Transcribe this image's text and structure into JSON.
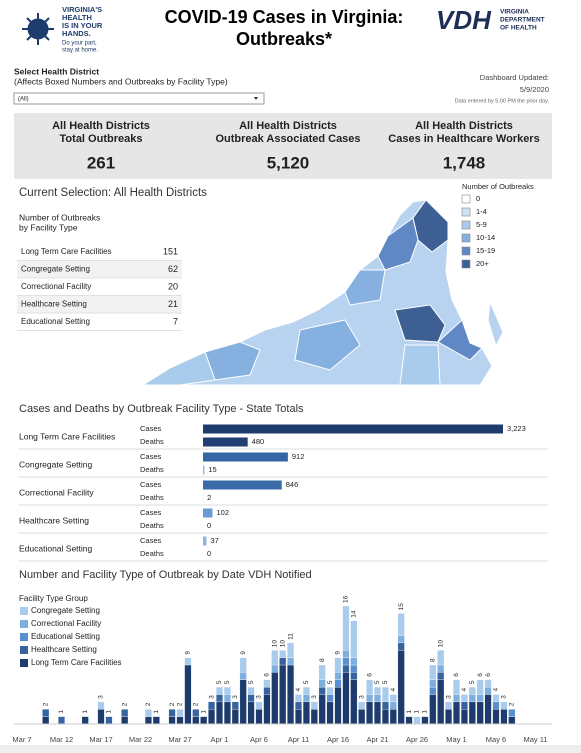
{
  "header": {
    "logo_lines": [
      "VIRGINIA'S",
      "HEALTH",
      "IS IN YOUR",
      "HANDS."
    ],
    "logo_tagline": [
      "Do your part,",
      "stay at home."
    ],
    "title_lines": [
      "COVID-19 Cases in Virginia:",
      "Outbreaks*"
    ],
    "agency_short": "VDH",
    "agency_lines": [
      "VIRGINIA",
      "DEPARTMENT",
      "OF HEALTH"
    ]
  },
  "filter": {
    "label": "Select Health District",
    "note": "(Affects Boxed Numbers and Outbreaks by Facility Type)",
    "selected": "(All)"
  },
  "update": {
    "label": "Dashboard Updated:",
    "date": "5/9/2020",
    "note": "Data entered by 5:00 PM the prior day."
  },
  "kpis": [
    {
      "label_lines": [
        "All Health Districts",
        "Total Outbreaks"
      ],
      "value": "261"
    },
    {
      "label_lines": [
        "All Health Districts",
        "Outbreak Associated Cases"
      ],
      "value": "5,120"
    },
    {
      "label_lines": [
        "All Health Districts",
        "Cases in Healthcare Workers"
      ],
      "value": "1,748"
    }
  ],
  "selection": "Current Selection: All Health Districts",
  "facility_table": {
    "title_lines": [
      "Number of Outbreaks",
      "by Facility Type"
    ],
    "rows": [
      [
        "Long Term Care Facilities",
        151
      ],
      [
        "Congregate Setting",
        62
      ],
      [
        "Correctional Facility",
        20
      ],
      [
        "Healthcare Setting",
        21
      ],
      [
        "Educational Setting",
        7
      ]
    ]
  },
  "map_legend": {
    "title": "Number of Outbreaks",
    "items": [
      {
        "label": "0",
        "color": "#ffffff"
      },
      {
        "label": "1-4",
        "color": "#cfe1f5"
      },
      {
        "label": "5-9",
        "color": "#a9cbec"
      },
      {
        "label": "10-14",
        "color": "#86b0e0"
      },
      {
        "label": "15-19",
        "color": "#5f88c4"
      },
      {
        "label": "20+",
        "color": "#3d5f94"
      }
    ]
  },
  "chart_data": [
    {
      "type": "hbar",
      "title": "Cases and Deaths by Outbreak Facility Type - State Totals",
      "categories": [
        "Long Term Care Facilities",
        "Congregate Setting",
        "Correctional Facility",
        "Healthcare Setting",
        "Educational Setting"
      ],
      "series": [
        {
          "name": "Cases",
          "values": [
            3223,
            912,
            846,
            102,
            37
          ],
          "value_labels": [
            "3,223",
            "912",
            "846",
            "102",
            "37"
          ],
          "colors": [
            "#1d3b6c",
            "#3465a4",
            "#3a6aa8",
            "#6a9ad4",
            "#8fb6e3"
          ]
        },
        {
          "name": "Deaths",
          "values": [
            480,
            15,
            2,
            0,
            0
          ],
          "value_labels": [
            "480",
            "15",
            "2",
            "0",
            "0"
          ],
          "colors": [
            "#223f73",
            "#8fb6e3",
            "#a8c8ec",
            "#b7d0ee",
            "#b7d0ee"
          ]
        }
      ]
    },
    {
      "type": "stacked_bar",
      "title": "Number and Facility Type of Outbreak by Date VDH Notified",
      "legend_title": "Facility Type Group",
      "categories": [
        "Mar 7",
        null,
        null,
        null,
        null,
        "Mar 12",
        null,
        null,
        null,
        null,
        "Mar 17",
        null,
        null,
        null,
        null,
        "Mar 22",
        null,
        null,
        null,
        null,
        "Mar 27",
        null,
        null,
        null,
        null,
        "Apr 1",
        null,
        null,
        null,
        null,
        "Apr 6",
        null,
        null,
        null,
        null,
        "Apr 11",
        null,
        null,
        null,
        null,
        "Apr 16",
        null,
        null,
        null,
        null,
        "Apr 21",
        null,
        null,
        null,
        null,
        "Apr 26",
        null,
        null,
        null,
        null,
        "May 1",
        null,
        null,
        null,
        null,
        "May 6",
        null,
        null,
        null,
        null,
        "May 11"
      ],
      "totals": [
        null,
        null,
        null,
        2,
        null,
        1,
        null,
        null,
        1,
        null,
        3,
        1,
        null,
        2,
        null,
        null,
        2,
        1,
        null,
        2,
        2,
        9,
        2,
        1,
        3,
        5,
        5,
        3,
        9,
        5,
        3,
        6,
        10,
        10,
        11,
        4,
        5,
        3,
        8,
        5,
        9,
        16,
        14,
        3,
        6,
        5,
        5,
        4,
        15,
        1,
        1,
        1,
        8,
        10,
        3,
        6,
        4,
        5,
        6,
        6,
        4,
        3,
        2,
        null,
        null,
        null
      ],
      "series": [
        {
          "name": "Congregate Setting",
          "color": "#a9cbec",
          "values": [
            0,
            0,
            0,
            0,
            0,
            0,
            0,
            0,
            0,
            0,
            1,
            0,
            0,
            0,
            0,
            0,
            1,
            0,
            0,
            0,
            1,
            1,
            0,
            0,
            0,
            1,
            1,
            0,
            2,
            1,
            1,
            1,
            2,
            1,
            2,
            1,
            1,
            1,
            2,
            1,
            2,
            6,
            5,
            1,
            2,
            1,
            2,
            1,
            3,
            0,
            1,
            0,
            2,
            2,
            1,
            2,
            1,
            1,
            2,
            1,
            1,
            1,
            0,
            0,
            0,
            0
          ]
        },
        {
          "name": "Correctional Facility",
          "color": "#7eaede",
          "values": [
            0,
            0,
            0,
            0,
            0,
            0,
            0,
            0,
            0,
            0,
            0,
            0,
            0,
            0,
            0,
            0,
            0,
            0,
            0,
            0,
            0,
            0,
            0,
            0,
            0,
            0,
            1,
            0,
            1,
            0,
            0,
            0,
            1,
            0,
            1,
            0,
            1,
            0,
            1,
            0,
            1,
            1,
            1,
            0,
            1,
            1,
            0,
            1,
            1,
            0,
            0,
            0,
            1,
            1,
            0,
            1,
            0,
            1,
            1,
            1,
            0,
            0,
            0,
            0,
            0,
            0
          ]
        },
        {
          "name": "Educational Setting",
          "color": "#5a8fcf",
          "values": [
            0,
            0,
            0,
            0,
            0,
            0,
            0,
            0,
            0,
            0,
            0,
            0,
            0,
            0,
            0,
            0,
            0,
            0,
            0,
            0,
            0,
            0,
            0,
            0,
            0,
            0,
            0,
            0,
            0,
            0,
            0,
            0,
            0,
            0,
            0,
            0,
            0,
            0,
            0,
            1,
            1,
            1,
            1,
            0,
            0,
            0,
            0,
            0,
            0,
            0,
            0,
            0,
            1,
            0,
            0,
            0,
            0,
            0,
            0,
            0,
            1,
            0,
            1,
            0,
            0,
            0
          ]
        },
        {
          "name": "Healthcare Setting",
          "color": "#37649f",
          "values": [
            0,
            0,
            0,
            1,
            0,
            1,
            0,
            0,
            0,
            0,
            0,
            1,
            0,
            1,
            0,
            0,
            0,
            0,
            0,
            1,
            0,
            0,
            1,
            0,
            1,
            1,
            0,
            1,
            0,
            1,
            0,
            1,
            0,
            1,
            0,
            1,
            0,
            0,
            1,
            0,
            0,
            1,
            1,
            0,
            0,
            0,
            1,
            0,
            1,
            0,
            0,
            0,
            0,
            1,
            0,
            0,
            1,
            0,
            0,
            0,
            0,
            0,
            0,
            0,
            0,
            0
          ]
        },
        {
          "name": "Long Term Care Facilities",
          "color": "#1d3b6c",
          "values": [
            0,
            0,
            0,
            1,
            0,
            0,
            0,
            0,
            1,
            0,
            2,
            0,
            0,
            1,
            0,
            0,
            1,
            1,
            0,
            1,
            1,
            8,
            1,
            1,
            2,
            3,
            3,
            2,
            6,
            3,
            2,
            4,
            7,
            8,
            8,
            2,
            3,
            2,
            4,
            3,
            5,
            7,
            6,
            2,
            3,
            3,
            2,
            2,
            10,
            1,
            0,
            1,
            4,
            6,
            2,
            3,
            2,
            3,
            3,
            4,
            2,
            2,
            1,
            0,
            0,
            0
          ]
        }
      ]
    }
  ]
}
